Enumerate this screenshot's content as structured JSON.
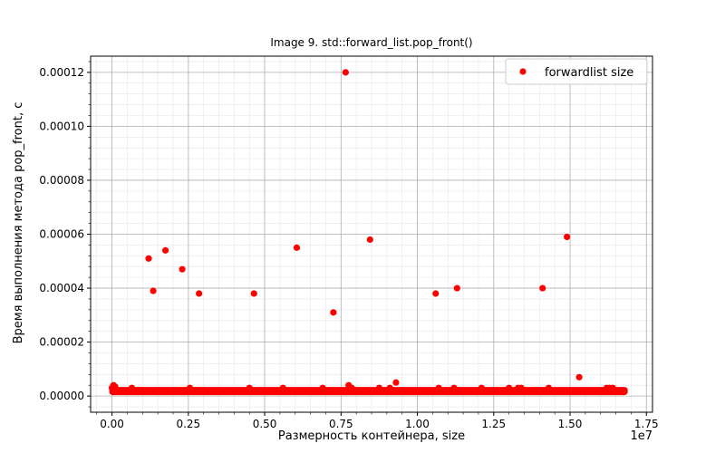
{
  "chart_data": {
    "type": "scatter",
    "title": "Image 9. std::forward_list.pop_front()",
    "xlabel": "Размерность контейнера, size",
    "ylabel": "Время выполнения метода pop_front, с",
    "x_offset_label": "1e7",
    "xlim": [
      -700000,
      17700000
    ],
    "ylim": [
      -6e-06,
      0.000126
    ],
    "x_ticks": [
      0,
      2500000,
      5000000,
      7500000,
      10000000,
      12500000,
      15000000,
      17500000
    ],
    "x_tick_labels": [
      "0.00",
      "0.25",
      "0.50",
      "0.75",
      "1.00",
      "1.25",
      "1.50",
      "1.75"
    ],
    "y_ticks": [
      0,
      2e-05,
      4e-05,
      6e-05,
      8e-05,
      0.0001,
      0.00012
    ],
    "y_tick_labels": [
      "0.00000",
      "0.00002",
      "0.00004",
      "0.00006",
      "0.00008",
      "0.00010",
      "0.00012"
    ],
    "grid": true,
    "minor_grid": true,
    "legend_position": "top-right",
    "series": [
      {
        "name": "forwardlist size",
        "color": "#ff0000",
        "baseline": {
          "x_start": 0,
          "x_end": 16800000,
          "y": 1.2e-06
        },
        "x": [
          0,
          50000,
          100000,
          650000,
          1200000,
          1350000,
          1750000,
          2300000,
          2550000,
          2850000,
          4500000,
          4650000,
          5600000,
          6050000,
          6900000,
          7250000,
          7650000,
          7750000,
          7850000,
          8450000,
          8750000,
          9100000,
          9300000,
          10600000,
          10700000,
          11200000,
          11300000,
          12100000,
          13000000,
          13300000,
          13400000,
          14100000,
          14300000,
          14900000,
          15300000,
          16200000,
          16300000,
          16400000
        ],
        "y": [
          3e-06,
          4e-06,
          3.5e-06,
          3e-06,
          5.1e-05,
          3.9e-05,
          5.4e-05,
          4.7e-05,
          3e-06,
          3.8e-05,
          3e-06,
          3.8e-05,
          3e-06,
          5.5e-05,
          3e-06,
          3.1e-05,
          0.00012,
          4e-06,
          3e-06,
          5.8e-05,
          3e-06,
          3e-06,
          5e-06,
          3.8e-05,
          3e-06,
          3e-06,
          4e-05,
          3e-06,
          3e-06,
          3e-06,
          3e-06,
          4e-05,
          3e-06,
          5.9e-05,
          7e-06,
          3e-06,
          3e-06,
          3e-06
        ]
      }
    ]
  }
}
